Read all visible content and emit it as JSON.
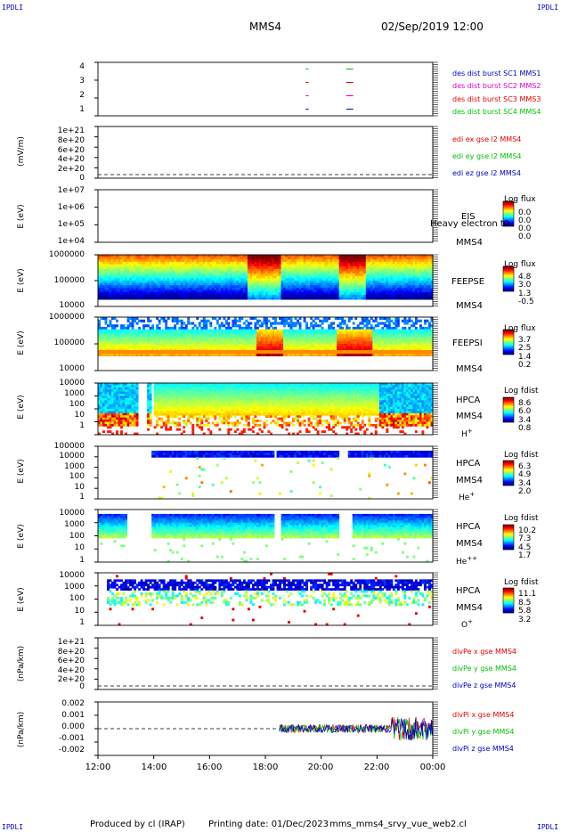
{
  "corner_labels": {
    "tl": "IPDLI",
    "tr": "IPDLI",
    "bl": "IPDLI",
    "br": "IPDLI"
  },
  "header": {
    "spacecraft": "MMS4",
    "datetime": "02/Sep/2019 12:00"
  },
  "footer": {
    "produced": "Produced by cl (IRAP)",
    "printed": "Printing date: 01/Dec/2023",
    "script": "mms_mms4_srvy_vue_web2.cl"
  },
  "x_axis": {
    "ticks": [
      "12:00",
      "14:00",
      "16:00",
      "18:00",
      "20:00",
      "22:00",
      "00:00"
    ]
  },
  "colors": {
    "red": "#e00000",
    "magenta": "#d000d0",
    "blue": "#0000c8",
    "green": "#00c000",
    "black": "#000000"
  },
  "chart_data": [
    {
      "type": "scatter",
      "panel": "burst",
      "ylabel": "",
      "yticks": [
        "4",
        "3",
        "2",
        "1"
      ],
      "ylim": [
        0.5,
        4.5
      ],
      "legend": [
        {
          "text": "des dist burst SC1 MMS1",
          "color": "#0000c8"
        },
        {
          "text": "des dist burst SC2 MMS2",
          "color": "#d000d0"
        },
        {
          "text": "des dist burst SC3 MMS3",
          "color": "#e00000"
        },
        {
          "text": "des dist burst SC4 MMS4",
          "color": "#00c000"
        }
      ],
      "segments": [
        {
          "sc": 4,
          "t_start": 19.45,
          "t_end": 19.55,
          "color": "#00c000"
        },
        {
          "sc": 4,
          "t_start": 20.9,
          "t_end": 21.15,
          "color": "#00c000"
        },
        {
          "sc": 3,
          "t_start": 19.45,
          "t_end": 19.55,
          "color": "#e00000"
        },
        {
          "sc": 3,
          "t_start": 20.9,
          "t_end": 21.15,
          "color": "#e00000"
        },
        {
          "sc": 2,
          "t_start": 19.45,
          "t_end": 19.55,
          "color": "#d000d0"
        },
        {
          "sc": 2,
          "t_start": 20.9,
          "t_end": 21.15,
          "color": "#d000d0"
        },
        {
          "sc": 1,
          "t_start": 19.45,
          "t_end": 19.55,
          "color": "#0000c8"
        },
        {
          "sc": 1,
          "t_start": 20.9,
          "t_end": 21.15,
          "color": "#0000c8"
        }
      ]
    },
    {
      "type": "line",
      "panel": "edi",
      "ylabel": "(mV/m)",
      "yticks": [
        "1e+21",
        "8e+20",
        "6e+20",
        "4e+20",
        "2e+20",
        "0"
      ],
      "legend": [
        {
          "text": "edi ex gse l2 MMS4",
          "color": "#e00000"
        },
        {
          "text": "edi ey gse l2 MMS4",
          "color": "#00c000"
        },
        {
          "text": "edi ez gse l2 MMS4",
          "color": "#0000c8"
        }
      ]
    },
    {
      "type": "heatmap",
      "panel": "eis",
      "ylabel": "E (eV)",
      "yticks": [
        "1e+07",
        "1e+06",
        "1e+05",
        "1e+04"
      ],
      "instrument": "EIS",
      "overlay": "Heavy electron t0",
      "sc": "MMS4",
      "cb_title": "Log flux",
      "cb_values": [
        "0.0",
        "0.0",
        "0.0",
        "0.0"
      ]
    },
    {
      "type": "heatmap",
      "panel": "feepse",
      "ylabel": "E (eV)",
      "yticks": [
        "1000000",
        "100000",
        "10000"
      ],
      "instrument": "FEEPSE",
      "sc": "MMS4",
      "cb_title": "Log flux",
      "cb_values": [
        "4.8",
        "3.0",
        "1.3",
        "-0.5"
      ]
    },
    {
      "type": "heatmap",
      "panel": "feepsi",
      "ylabel": "E (eV)",
      "yticks": [
        "1000000",
        "100000",
        "10000"
      ],
      "instrument": "FEEPSI",
      "sc": "MMS4",
      "cb_title": "Log flux",
      "cb_values": [
        "3.7",
        "2.5",
        "1.4",
        "0.2"
      ]
    },
    {
      "type": "heatmap",
      "panel": "hpca_h",
      "ylabel": "E (eV)",
      "yticks": [
        "10000",
        "1000",
        "100",
        "10",
        "1"
      ],
      "instrument": "HPCA",
      "sc": "MMS4",
      "species": "H",
      "species_sup": "+",
      "cb_title": "Log fdist",
      "cb_values": [
        "8.6",
        "6.0",
        "3.4",
        "0.8"
      ]
    },
    {
      "type": "heatmap",
      "panel": "hpca_he",
      "ylabel": "E (eV)",
      "yticks": [
        "100000",
        "10000",
        "1000",
        "100",
        "10",
        "1"
      ],
      "instrument": "HPCA",
      "sc": "MMS4",
      "species": "He",
      "species_sup": "+",
      "cb_title": "Log fdist",
      "cb_values": [
        "6.3",
        "4.9",
        "3.4",
        "2.0"
      ]
    },
    {
      "type": "heatmap",
      "panel": "hpca_hepp",
      "ylabel": "E (eV)",
      "yticks": [
        "10000",
        "1000",
        "100",
        "10",
        "1"
      ],
      "instrument": "HPCA",
      "sc": "MMS4",
      "species": "He",
      "species_sup": "++",
      "cb_title": "Log fdist",
      "cb_values": [
        "10.2",
        "7.3",
        "4.5",
        "1.7"
      ]
    },
    {
      "type": "heatmap",
      "panel": "hpca_o",
      "ylabel": "E (eV)",
      "yticks": [
        "10000",
        "1000",
        "100",
        "10",
        "1"
      ],
      "instrument": "HPCA",
      "sc": "MMS4",
      "species": "O",
      "species_sup": "+",
      "cb_title": "Log fdist",
      "cb_values": [
        "11.1",
        "8.5",
        "5.8",
        "3.2"
      ]
    },
    {
      "type": "line",
      "panel": "divpe",
      "ylabel": "(nPa/km)",
      "yticks": [
        "1e+21",
        "8e+20",
        "6e+20",
        "4e+20",
        "2e+20",
        "0"
      ],
      "legend": [
        {
          "text": "divPe x gse MMS4",
          "color": "#e00000"
        },
        {
          "text": "divPe y gse MMS4",
          "color": "#00c000"
        },
        {
          "text": "divPe z gse MMS4",
          "color": "#0000c8"
        }
      ]
    },
    {
      "type": "line",
      "panel": "divpi",
      "ylabel": "(nPa/km)",
      "yticks": [
        "0.002",
        "0.001",
        "0.000",
        "-0.001",
        "-0.002"
      ],
      "ylim": [
        -0.0025,
        0.0025
      ],
      "data_start_hour": 18.5,
      "legend": [
        {
          "text": "divPi x gse MMS4",
          "color": "#e00000"
        },
        {
          "text": "divPi y gse MMS4",
          "color": "#00c000"
        },
        {
          "text": "divPi z gse MMS4",
          "color": "#0000c8"
        }
      ]
    }
  ]
}
